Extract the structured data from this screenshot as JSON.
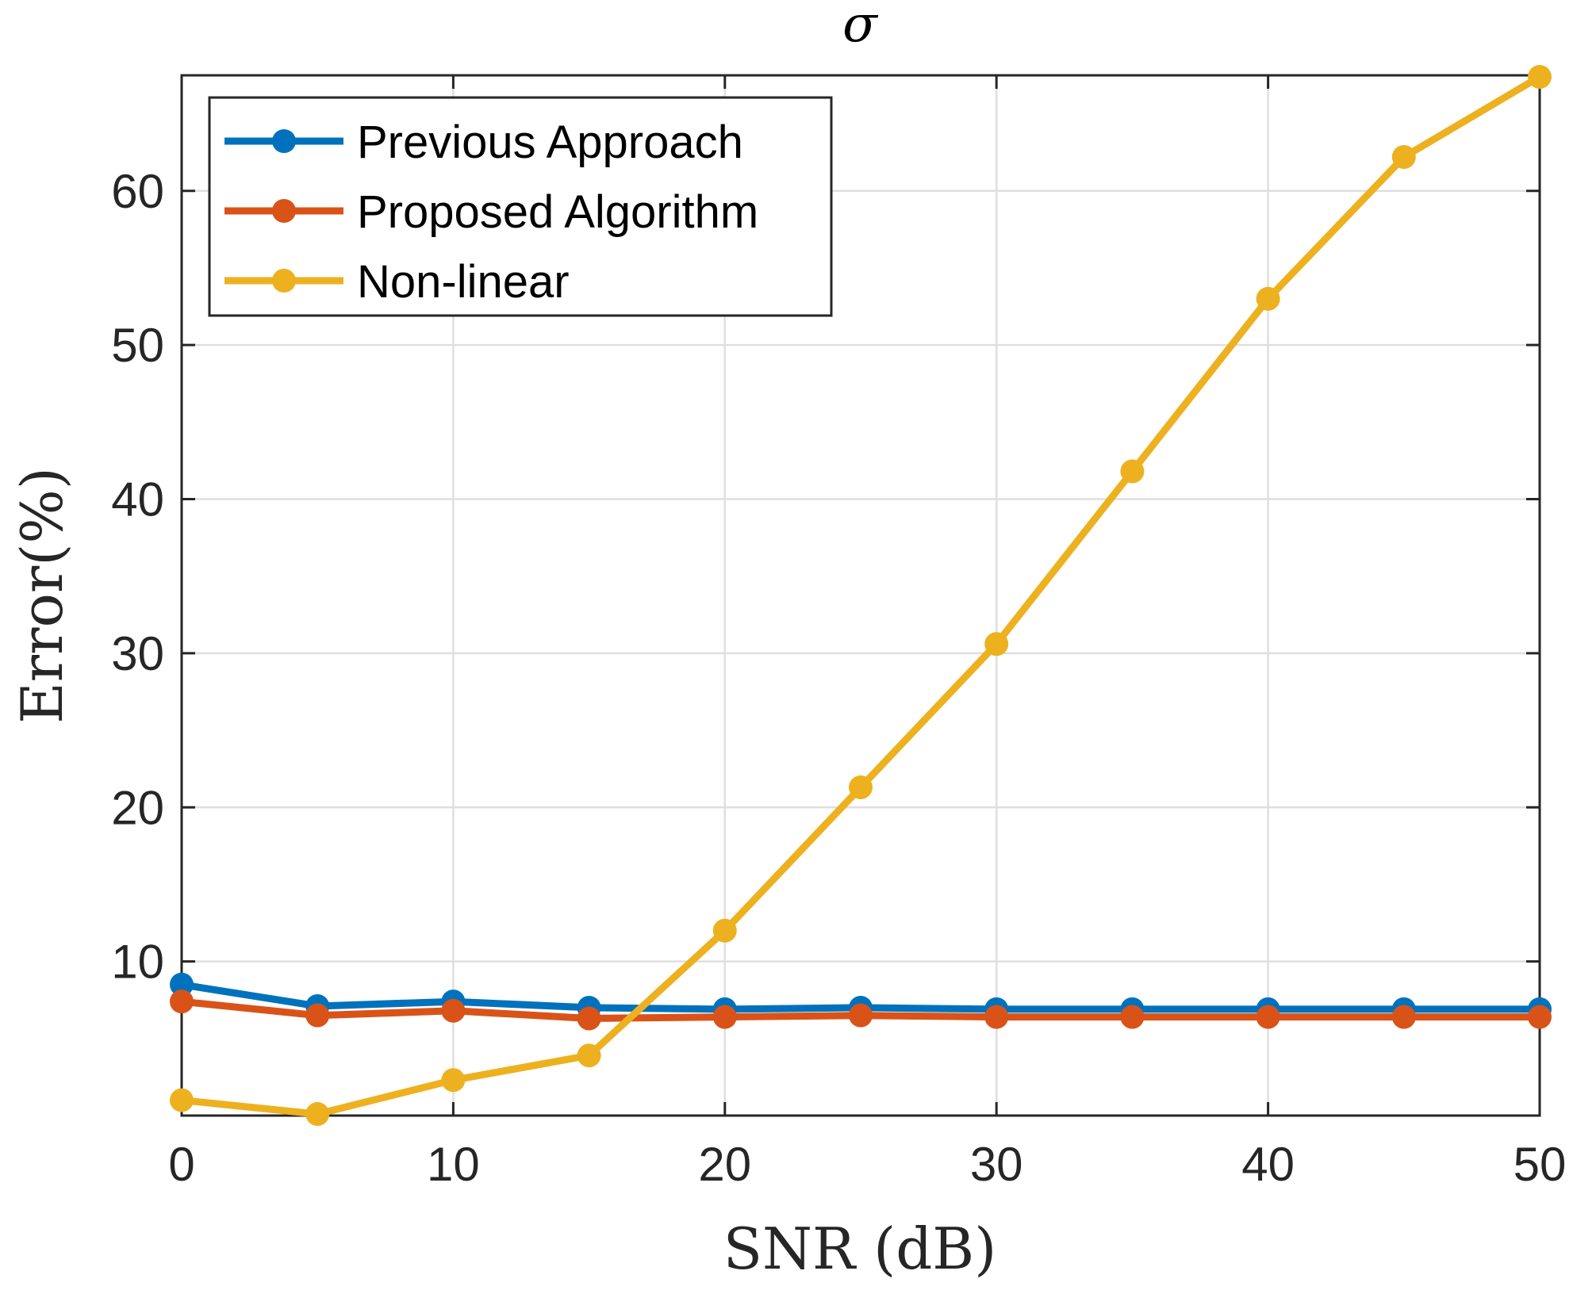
{
  "chart_data": {
    "type": "line",
    "title": "σ",
    "xlabel": "SNR (dB)",
    "ylabel": "Error(%)",
    "x": [
      0,
      5,
      10,
      15,
      20,
      25,
      30,
      35,
      40,
      45,
      50
    ],
    "xlim": [
      0,
      50
    ],
    "ylim": [
      0,
      67.5
    ],
    "xticks": [
      0,
      10,
      20,
      30,
      40,
      50
    ],
    "yticks": [
      10,
      20,
      30,
      40,
      50,
      60
    ],
    "xtick_labels": [
      "0",
      "10",
      "20",
      "30",
      "40",
      "50"
    ],
    "ytick_labels": [
      "10",
      "20",
      "30",
      "40",
      "50",
      "60"
    ],
    "grid": true,
    "legend_position": "top-left",
    "series": [
      {
        "name": "Previous Approach",
        "color": "#0072BD",
        "values": [
          8.5,
          7.1,
          7.4,
          7.0,
          6.9,
          7.0,
          6.9,
          6.9,
          6.9,
          6.9,
          6.9
        ]
      },
      {
        "name": "Proposed Algorithm",
        "color": "#D95319",
        "values": [
          7.4,
          6.5,
          6.8,
          6.3,
          6.4,
          6.5,
          6.4,
          6.4,
          6.4,
          6.4,
          6.4
        ]
      },
      {
        "name": "Non-linear",
        "color": "#EDB120",
        "values": [
          1.0,
          0.1,
          2.3,
          3.9,
          12.0,
          21.3,
          30.6,
          41.8,
          53.0,
          62.2,
          67.4
        ]
      }
    ]
  }
}
